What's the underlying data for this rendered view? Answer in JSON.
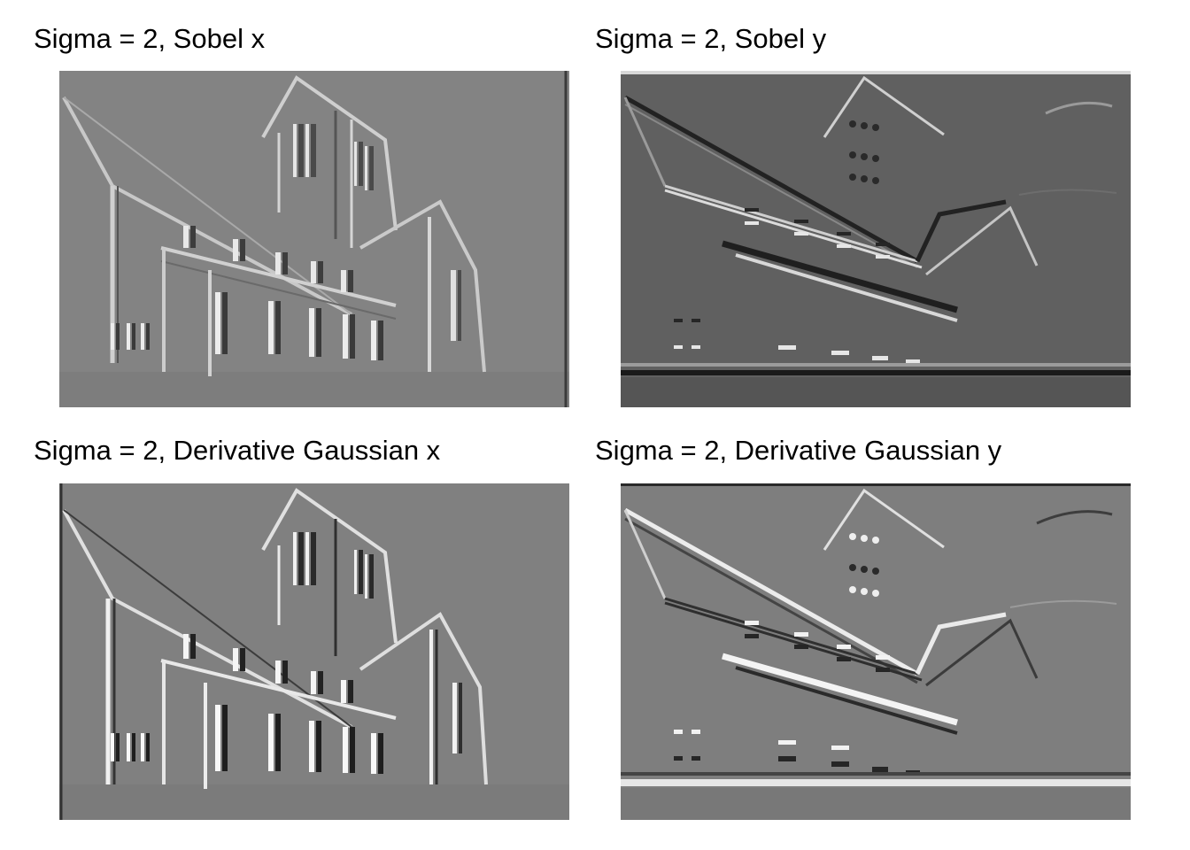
{
  "panels": [
    {
      "title": "Sigma = 2, Sobel x",
      "background": "#838383"
    },
    {
      "title": "Sigma = 2, Sobel y",
      "background": "#606060"
    },
    {
      "title": "Sigma = 2, Derivative Gaussian x",
      "background": "#808080"
    },
    {
      "title": "Sigma = 2, Derivative Gaussian y",
      "background": "#7e7e7e"
    }
  ]
}
